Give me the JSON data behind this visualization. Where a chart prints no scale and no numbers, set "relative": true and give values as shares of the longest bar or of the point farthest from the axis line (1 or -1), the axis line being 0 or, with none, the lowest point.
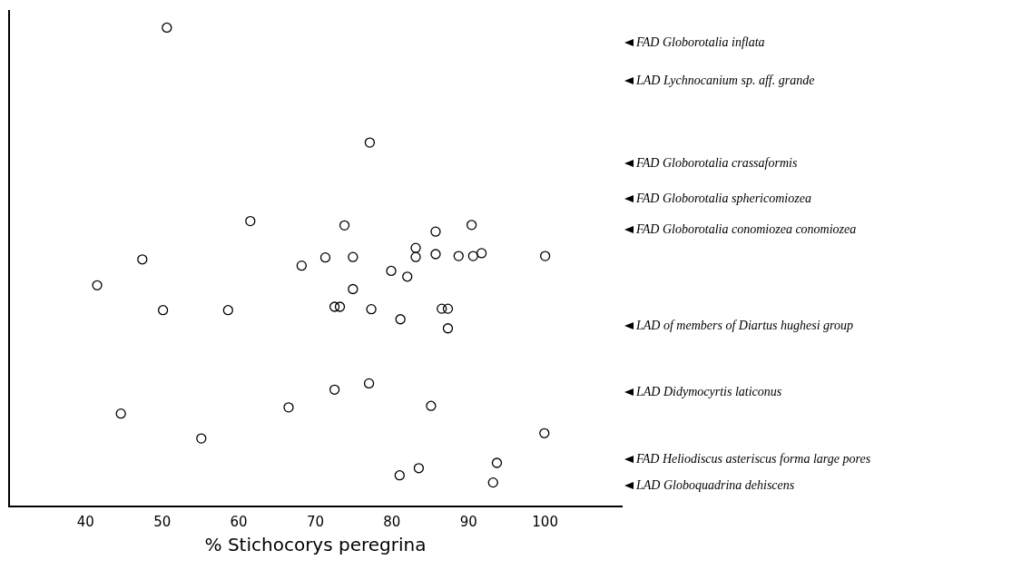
{
  "chart_data": {
    "type": "scatter",
    "xlabel": "% Stichocorys peregrina",
    "relative": true,
    "marker": "circle",
    "grid": false,
    "legend": false,
    "xlim": [
      30,
      110
    ],
    "xticks": [
      40,
      50,
      60,
      70,
      80,
      90,
      100
    ],
    "series": [
      {
        "color": "#000000",
        "x": [
          50.6,
          77.1,
          61.5,
          73.8,
          90.4,
          85.7,
          83.1,
          83.1,
          85.7,
          88.7,
          90.6,
          91.7,
          100,
          47.4,
          71.3,
          74.9,
          68.2,
          79.9,
          82.0,
          41.5,
          74.9,
          72.5,
          73.2,
          77.3,
          50.1,
          58.6,
          81.1,
          86.5,
          87.3,
          87.3,
          77.0,
          72.5,
          66.5,
          85.1,
          44.6,
          55.1,
          99.9,
          93.7,
          83.5,
          81.0,
          93.2
        ],
        "values": [
          1.0,
          0.76,
          0.596,
          0.587,
          0.588,
          0.574,
          0.54,
          0.521,
          0.527,
          0.523,
          0.523,
          0.529,
          0.523,
          0.516,
          0.52,
          0.521,
          0.503,
          0.492,
          0.48,
          0.462,
          0.454,
          0.417,
          0.417,
          0.412,
          0.41,
          0.41,
          0.391,
          0.413,
          0.413,
          0.372,
          0.257,
          0.244,
          0.207,
          0.21,
          0.194,
          0.142,
          0.153,
          0.091,
          0.08,
          0.065,
          0.05
        ]
      }
    ],
    "annotations": [
      "FAD Globorotalia inflata",
      "LAD Lychnocanium sp. aff. grande",
      "FAD Globorotalia crassaformis",
      "FAD Globorotalia sphericomiozea",
      "FAD Globorotalia conomiozea conomiozea",
      "LAD of members of Diartus hughesi group",
      "LAD Didymocyrtis laticonus",
      "FAD Heliodiscus asteriscus forma large pores",
      "LAD Globoquadrina dehiscens"
    ]
  }
}
